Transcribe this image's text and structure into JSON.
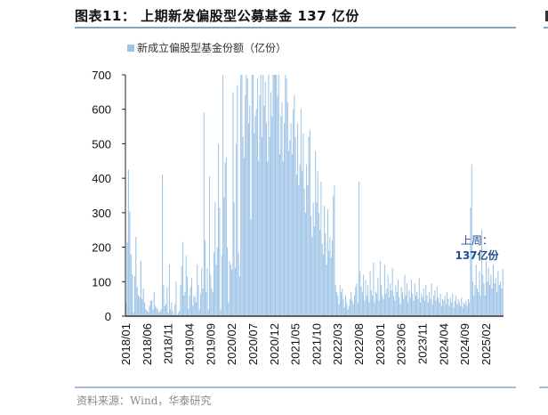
{
  "header": {
    "title": "图表11：  上期新发偏股型公募基金 137 亿份"
  },
  "legend": {
    "label": "新成立偏股型基金份额（亿份）",
    "swatch_color": "#9dc3e6"
  },
  "annotation": {
    "line1": "上周：",
    "line2": "137亿份",
    "color": "#1f4e8c"
  },
  "footer": {
    "source": "资料来源：Wind，华泰研究"
  },
  "chart_data": {
    "type": "bar",
    "title": "新成立偏股型基金份额（亿份）",
    "xlabel": "",
    "ylabel": "",
    "ylim": [
      0,
      700
    ],
    "yticks": [
      0,
      100,
      200,
      300,
      400,
      500,
      600,
      700
    ],
    "xtick_labels": [
      "2018/01",
      "2018/06",
      "2018/11",
      "2019/04",
      "2019/09",
      "2020/02",
      "2020/07",
      "2020/12",
      "2021/05",
      "2021/10",
      "2022/03",
      "2022/08",
      "2023/01",
      "2023/06",
      "2023/11",
      "2024/04",
      "2024/09",
      "2025/02"
    ],
    "grid": false,
    "legend_position": "top-left",
    "frequency": "weekly",
    "bar_color": "#9dc3e6",
    "last_value": 137,
    "segments": [
      {
        "period": "2018/01-2018/06",
        "values": [
          40,
          215,
          425,
          305,
          180,
          120,
          10,
          115,
          230,
          85,
          60,
          55,
          160,
          50,
          80,
          40,
          20
        ]
      },
      {
        "period": "2018/06-2018/11",
        "values": [
          15,
          12,
          30,
          45,
          45,
          20,
          70,
          30,
          25,
          20,
          10,
          15,
          20,
          410,
          90,
          30,
          35,
          85
        ]
      },
      {
        "period": "2018/11-2019/04",
        "values": [
          10,
          150,
          20,
          40,
          15,
          5,
          35,
          100,
          5,
          10,
          15,
          90,
          145,
          215,
          60,
          70,
          175,
          115,
          20
        ]
      },
      {
        "period": "2019/04-2019/09",
        "values": [
          60,
          85,
          110,
          30,
          60,
          55,
          40,
          150,
          90,
          20,
          65,
          140,
          80,
          590,
          220,
          70,
          140,
          20,
          405
        ]
      },
      {
        "period": "2019/09-2020/02",
        "values": [
          120,
          80,
          70,
          185,
          330,
          150,
          200,
          500,
          315,
          20,
          175,
          700,
          345,
          445,
          460,
          200,
          40,
          160,
          150
        ]
      },
      {
        "period": "2020/02-2020/07",
        "values": [
          135,
          650,
          330,
          140,
          500,
          670,
          185,
          115,
          700,
          700,
          520,
          460,
          640,
          700,
          690,
          560,
          610,
          280,
          700
        ]
      },
      {
        "period": "2020/07-2020/12",
        "values": [
          700,
          530,
          580,
          600,
          690,
          450,
          640,
          700,
          520,
          700,
          610,
          680,
          560,
          450,
          700,
          520,
          650,
          580,
          700
        ]
      },
      {
        "period": "2020/12-2021/05",
        "values": [
          700,
          700,
          700,
          640,
          700,
          470,
          580,
          620,
          450,
          560,
          700,
          690,
          620,
          480,
          510,
          560,
          470,
          600,
          640
        ]
      },
      {
        "period": "2021/05-2021/10",
        "values": [
          520,
          410,
          560,
          380,
          440,
          600,
          420,
          530,
          370,
          300,
          440,
          380,
          520,
          540,
          290,
          230,
          330,
          260,
          480
        ]
      },
      {
        "period": "2021/10-2022/03",
        "values": [
          330,
          420,
          300,
          250,
          390,
          210,
          180,
          320,
          240,
          150,
          310,
          190,
          230,
          170,
          220,
          350,
          380,
          90,
          70
        ]
      },
      {
        "period": "2022/03-2022/08",
        "values": [
          60,
          35,
          90,
          70,
          80,
          50,
          25,
          60,
          40,
          20,
          30,
          50,
          70,
          45,
          35,
          60,
          85,
          95,
          40
        ]
      },
      {
        "period": "2022/08-2023/01",
        "values": [
          390,
          130,
          85,
          70,
          120,
          45,
          105,
          60,
          90,
          40,
          130,
          75,
          60,
          155,
          40,
          70,
          65,
          110,
          45
        ]
      },
      {
        "period": "2023/01-2023/06",
        "values": [
          160,
          90,
          60,
          50,
          150,
          65,
          80,
          120,
          55,
          95,
          75,
          140,
          60,
          45,
          90,
          70,
          105,
          55,
          35
        ]
      },
      {
        "period": "2023/06-2023/11",
        "values": [
          85,
          70,
          50,
          120,
          60,
          95,
          40,
          75,
          55,
          105,
          65,
          45,
          95,
          60,
          70,
          50,
          110,
          40,
          65
        ]
      },
      {
        "period": "2023/11-2024/04",
        "values": [
          55,
          80,
          45,
          90,
          60,
          40,
          70,
          50,
          95,
          35,
          60,
          75,
          45,
          85,
          55,
          40,
          65,
          30,
          50
        ]
      },
      {
        "period": "2024/04-2024/09",
        "values": [
          45,
          60,
          35,
          70,
          50,
          30,
          55,
          40,
          65,
          25,
          45,
          60,
          35,
          50,
          40,
          30,
          55,
          25,
          40
        ]
      },
      {
        "period": "2024/09-2025/02",
        "values": [
          35,
          45,
          30,
          50,
          40,
          315,
          440,
          100,
          60,
          90,
          150,
          80,
          70,
          130,
          60,
          250,
          120,
          95,
          60
        ]
      },
      {
        "period": "2025/02-2025/06",
        "values": [
          160,
          100,
          140,
          90,
          120,
          80,
          150,
          95,
          110,
          70,
          130,
          90,
          100,
          80,
          137
        ]
      }
    ]
  }
}
